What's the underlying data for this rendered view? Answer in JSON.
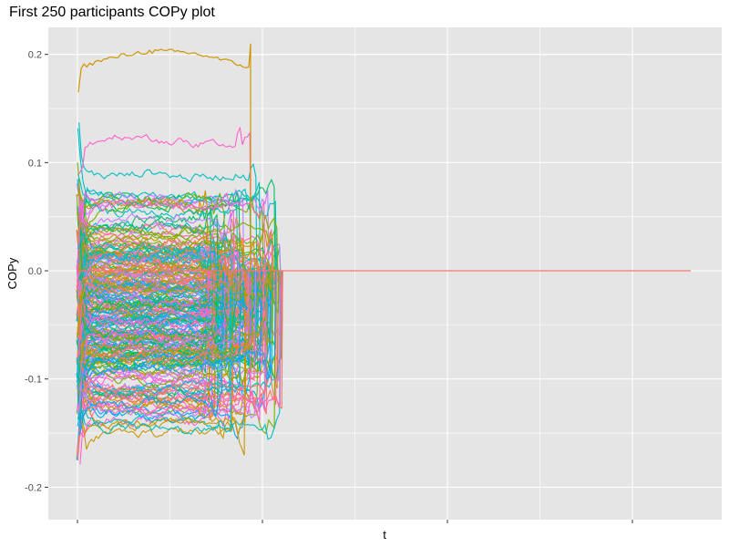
{
  "chart_data": {
    "type": "line",
    "title": "First 250 participants COPy plot",
    "xlabel": "t",
    "ylabel": "COPy",
    "ylim": [
      -0.23,
      0.225
    ],
    "y_ticks": [
      {
        "value": -0.2,
        "label": "-0.2"
      },
      {
        "value": -0.1,
        "label": "-0.1"
      },
      {
        "value": 0.0,
        "label": "0.0"
      },
      {
        "value": 0.1,
        "label": "0.1"
      },
      {
        "value": 0.2,
        "label": "0.2"
      }
    ],
    "x_tick_labels": [
      "",
      "",
      "",
      ""
    ],
    "grid": true,
    "legend": "none",
    "series_summary": {
      "count": 250,
      "level_range": [
        -0.2,
        0.2
      ],
      "zero_line_value": 0.0,
      "zero_line_color": "#F8766D"
    },
    "colors": {
      "panel_background": "#E5E5E5",
      "grid": "#FFFFFF",
      "palette": [
        "#F8766D",
        "#CD9600",
        "#7CAE00",
        "#00BE67",
        "#00BFC4",
        "#00A9FF",
        "#C77CFF",
        "#FF61CC"
      ]
    }
  }
}
